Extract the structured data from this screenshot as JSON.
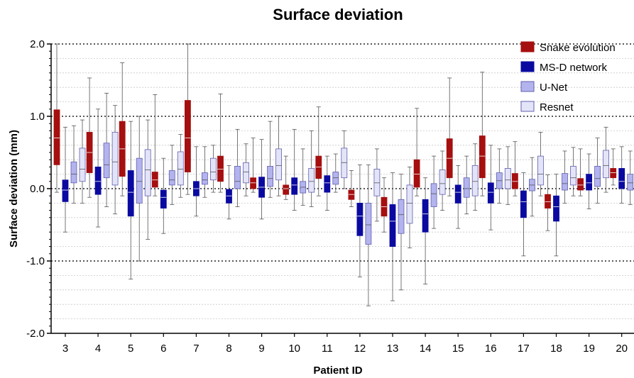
{
  "chart_data": {
    "type": "box",
    "title": "Surface deviation",
    "xlabel": "Patient ID",
    "ylabel": "Surface deviation (mm)",
    "ylim": [
      -2.0,
      2.0
    ],
    "yticks": [
      2.0,
      1.0,
      0.0,
      -1.0,
      -2.0
    ],
    "ytick_labels": [
      "2.0",
      "1.0",
      "0.0",
      "-1.0",
      "-2.0"
    ],
    "grid": "dotted horizontal lines every 0.2 mm, heavier at whole numbers",
    "legend_position": "top-right",
    "categories": [
      "3",
      "4",
      "5",
      "6",
      "7",
      "8",
      "9",
      "10",
      "11",
      "12",
      "13",
      "14",
      "15",
      "16",
      "17",
      "18",
      "19",
      "20"
    ],
    "series": [
      {
        "name": "Snake evolution",
        "color": "#a50f0f",
        "boxes": [
          {
            "min": -0.05,
            "q1": 0.33,
            "median": 0.7,
            "q3": 1.09,
            "max": 2.0
          },
          {
            "min": -0.12,
            "q1": 0.22,
            "median": 0.5,
            "q3": 0.78,
            "max": 1.53
          },
          {
            "min": -0.1,
            "q1": 0.17,
            "median": 0.55,
            "q3": 0.93,
            "max": 1.74
          },
          {
            "min": -0.1,
            "q1": 0.02,
            "median": 0.12,
            "q3": 0.23,
            "max": 1.3
          },
          {
            "min": -0.08,
            "q1": 0.23,
            "median": 0.7,
            "q3": 1.22,
            "max": 2.0
          },
          {
            "min": -0.05,
            "q1": 0.1,
            "median": 0.27,
            "q3": 0.45,
            "max": 1.31
          },
          {
            "min": -0.05,
            "q1": 0.0,
            "median": 0.08,
            "q3": 0.15,
            "max": 0.7
          },
          {
            "min": -0.15,
            "q1": -0.08,
            "median": 0.0,
            "q3": 0.05,
            "max": 0.45
          },
          {
            "min": -0.1,
            "q1": 0.14,
            "median": 0.3,
            "q3": 0.45,
            "max": 1.13
          },
          {
            "min": -0.25,
            "q1": -0.15,
            "median": -0.08,
            "q3": -0.02,
            "max": 0.25
          },
          {
            "min": -0.6,
            "q1": -0.38,
            "median": -0.25,
            "q3": -0.12,
            "max": 0.15
          },
          {
            "min": -0.1,
            "q1": 0.02,
            "median": 0.2,
            "q3": 0.4,
            "max": 1.11
          },
          {
            "min": -0.1,
            "q1": 0.15,
            "median": 0.42,
            "q3": 0.69,
            "max": 1.53
          },
          {
            "min": -0.1,
            "q1": 0.15,
            "median": 0.45,
            "q3": 0.73,
            "max": 1.61
          },
          {
            "min": -0.1,
            "q1": 0.0,
            "median": 0.1,
            "q3": 0.21,
            "max": 0.65
          },
          {
            "min": -0.58,
            "q1": -0.27,
            "median": -0.18,
            "q3": -0.08,
            "max": 0.19
          },
          {
            "min": -0.1,
            "q1": -0.02,
            "median": 0.05,
            "q3": 0.14,
            "max": 0.55
          },
          {
            "min": 0.05,
            "q1": 0.15,
            "median": 0.22,
            "q3": 0.28,
            "max": 0.55
          }
        ]
      },
      {
        "name": "MS-D network",
        "color": "#0a0aa0",
        "boxes": [
          {
            "min": -0.6,
            "q1": -0.18,
            "median": -0.02,
            "q3": 0.12,
            "max": 0.85
          },
          {
            "min": -0.53,
            "q1": -0.08,
            "median": 0.1,
            "q3": 0.3,
            "max": 1.1
          },
          {
            "min": -1.25,
            "q1": -0.38,
            "median": -0.05,
            "q3": 0.25,
            "max": 0.93
          },
          {
            "min": -0.62,
            "q1": -0.27,
            "median": -0.12,
            "q3": -0.02,
            "max": 0.42
          },
          {
            "min": -0.38,
            "q1": -0.1,
            "median": 0.0,
            "q3": 0.1,
            "max": 0.58
          },
          {
            "min": -0.42,
            "q1": -0.2,
            "median": -0.1,
            "q3": -0.01,
            "max": 0.32
          },
          {
            "min": -0.42,
            "q1": -0.12,
            "median": 0.02,
            "q3": 0.16,
            "max": 0.68
          },
          {
            "min": -0.3,
            "q1": -0.08,
            "median": 0.05,
            "q3": 0.15,
            "max": 0.82
          },
          {
            "min": -0.3,
            "q1": -0.05,
            "median": 0.08,
            "q3": 0.18,
            "max": 0.45
          },
          {
            "min": -1.22,
            "q1": -0.65,
            "median": -0.38,
            "q3": -0.2,
            "max": 0.33
          },
          {
            "min": -1.55,
            "q1": -0.8,
            "median": -0.45,
            "q3": -0.22,
            "max": 0.22
          },
          {
            "min": -1.32,
            "q1": -0.6,
            "median": -0.35,
            "q3": -0.15,
            "max": 0.15
          },
          {
            "min": -0.55,
            "q1": -0.2,
            "median": -0.05,
            "q3": 0.05,
            "max": 0.32
          },
          {
            "min": -0.57,
            "q1": -0.2,
            "median": -0.05,
            "q3": 0.08,
            "max": 0.6
          },
          {
            "min": -0.93,
            "q1": -0.4,
            "median": -0.18,
            "q3": -0.03,
            "max": 0.22
          },
          {
            "min": -0.93,
            "q1": -0.45,
            "median": -0.25,
            "q3": -0.1,
            "max": 0.2
          },
          {
            "min": -0.28,
            "q1": -0.02,
            "median": 0.08,
            "q3": 0.2,
            "max": 0.48
          },
          {
            "min": -0.2,
            "q1": 0.0,
            "median": 0.1,
            "q3": 0.28,
            "max": 0.58
          }
        ]
      },
      {
        "name": "U-Net",
        "color": "#b3b3ee",
        "boxes": [
          {
            "min": -0.2,
            "q1": 0.08,
            "median": 0.2,
            "q3": 0.37,
            "max": 0.87
          },
          {
            "min": -0.25,
            "q1": 0.15,
            "median": 0.33,
            "q3": 0.63,
            "max": 1.32
          },
          {
            "min": -1.0,
            "q1": -0.2,
            "median": 0.1,
            "q3": 0.42,
            "max": 1.0
          },
          {
            "min": -0.22,
            "q1": 0.05,
            "median": 0.12,
            "q3": 0.25,
            "max": 0.6
          },
          {
            "min": -0.12,
            "q1": 0.06,
            "median": 0.12,
            "q3": 0.22,
            "max": 0.58
          },
          {
            "min": -0.25,
            "q1": 0.0,
            "median": 0.1,
            "q3": 0.31,
            "max": 0.82
          },
          {
            "min": -0.12,
            "q1": 0.03,
            "median": 0.14,
            "q3": 0.31,
            "max": 0.93
          },
          {
            "min": -0.23,
            "q1": -0.06,
            "median": 0.02,
            "q3": 0.1,
            "max": 0.55
          },
          {
            "min": -0.05,
            "q1": 0.06,
            "median": 0.15,
            "q3": 0.23,
            "max": 0.48
          },
          {
            "min": -1.62,
            "q1": -0.77,
            "median": -0.5,
            "q3": -0.2,
            "max": 0.33
          },
          {
            "min": -1.4,
            "q1": -0.62,
            "median": -0.36,
            "q3": -0.15,
            "max": 0.2
          },
          {
            "min": -0.55,
            "q1": -0.25,
            "median": -0.07,
            "q3": 0.07,
            "max": 0.45
          },
          {
            "min": -0.35,
            "q1": -0.12,
            "median": 0.0,
            "q3": 0.15,
            "max": 0.45
          },
          {
            "min": -0.2,
            "q1": 0.0,
            "median": 0.11,
            "q3": 0.22,
            "max": 0.55
          },
          {
            "min": -0.38,
            "q1": -0.03,
            "median": 0.05,
            "q3": 0.13,
            "max": 0.43
          },
          {
            "min": -0.2,
            "q1": -0.02,
            "median": 0.07,
            "q3": 0.21,
            "max": 0.52
          },
          {
            "min": -0.2,
            "q1": 0.03,
            "median": 0.14,
            "q3": 0.31,
            "max": 0.7
          },
          {
            "min": -0.22,
            "q1": -0.02,
            "median": 0.08,
            "q3": 0.2,
            "max": 0.52
          }
        ]
      },
      {
        "name": "Resnet",
        "color": "#e4e4f8",
        "boxes": [
          {
            "min": -0.2,
            "q1": 0.1,
            "median": 0.27,
            "q3": 0.56,
            "max": 0.95
          },
          {
            "min": -0.35,
            "q1": 0.05,
            "median": 0.37,
            "q3": 0.78,
            "max": 1.15
          },
          {
            "min": -0.7,
            "q1": -0.1,
            "median": 0.26,
            "q3": 0.54,
            "max": 0.95
          },
          {
            "min": -0.12,
            "q1": 0.05,
            "median": 0.27,
            "q3": 0.51,
            "max": 0.75
          },
          {
            "min": -0.05,
            "q1": 0.12,
            "median": 0.23,
            "q3": 0.42,
            "max": 0.6
          },
          {
            "min": -0.1,
            "q1": 0.08,
            "median": 0.23,
            "q3": 0.36,
            "max": 0.62
          },
          {
            "min": -0.1,
            "q1": 0.12,
            "median": 0.32,
            "q3": 0.55,
            "max": 1.0
          },
          {
            "min": -0.25,
            "q1": -0.05,
            "median": 0.1,
            "q3": 0.28,
            "max": 0.8
          },
          {
            "min": 0.0,
            "q1": 0.15,
            "median": 0.36,
            "q3": 0.56,
            "max": 0.8
          },
          {
            "min": -0.45,
            "q1": -0.1,
            "median": 0.08,
            "q3": 0.27,
            "max": 0.55
          },
          {
            "min": -0.82,
            "q1": -0.48,
            "median": -0.2,
            "q3": 0.05,
            "max": 0.3
          },
          {
            "min": -0.3,
            "q1": -0.08,
            "median": 0.07,
            "q3": 0.26,
            "max": 0.52
          },
          {
            "min": -0.3,
            "q1": -0.1,
            "median": 0.1,
            "q3": 0.32,
            "max": 0.62
          },
          {
            "min": -0.22,
            "q1": 0.0,
            "median": 0.12,
            "q3": 0.28,
            "max": 0.58
          },
          {
            "min": -0.1,
            "q1": 0.05,
            "median": 0.2,
            "q3": 0.45,
            "max": 0.78
          },
          {
            "min": -0.1,
            "q1": 0.05,
            "median": 0.15,
            "q3": 0.31,
            "max": 0.57
          },
          {
            "min": -0.05,
            "q1": 0.15,
            "median": 0.32,
            "q3": 0.53,
            "max": 0.85
          },
          {
            "min": -0.05,
            "q1": 0.0,
            "median": 0.15,
            "q3": 0.3,
            "max": 0.6
          }
        ]
      }
    ]
  }
}
